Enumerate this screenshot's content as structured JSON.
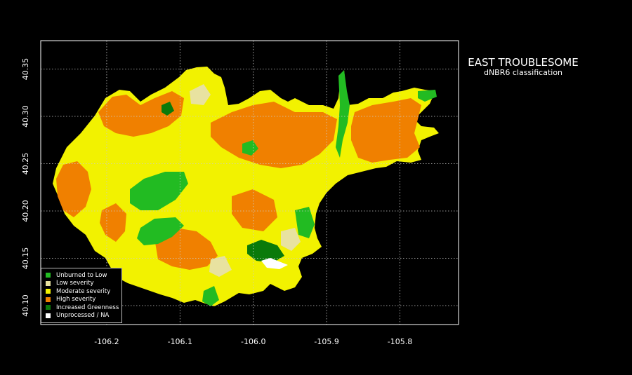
{
  "title": "EAST TROUBLESOME",
  "subtitle": "dNBR6 classification",
  "axes": {
    "x_ticks": [
      "-106.2",
      "-106.1",
      "-106.0",
      "-105.9",
      "-105.8"
    ],
    "x_tick_values": [
      -106.2,
      -106.1,
      -106.0,
      -105.9,
      -105.8
    ],
    "y_ticks": [
      "40.10",
      "40.15",
      "40.20",
      "40.25",
      "40.30",
      "40.35"
    ],
    "y_tick_values": [
      40.1,
      40.15,
      40.2,
      40.25,
      40.3,
      40.35
    ],
    "xlim": [
      -106.29,
      -105.72
    ],
    "ylim": [
      40.08,
      40.38
    ],
    "grid": true
  },
  "legend": {
    "placement": "bottom-left",
    "items": [
      {
        "label": "Unburned to Low",
        "color": "#22bb22"
      },
      {
        "label": "Low severity",
        "color": "#e8e2a0"
      },
      {
        "label": "Moderate severity",
        "color": "#f2f200"
      },
      {
        "label": "High severity",
        "color": "#f08000"
      },
      {
        "label": "Increased Greenness",
        "color": "#0a7a0a"
      },
      {
        "label": "Unprocessed / NA",
        "color": "#ffffff"
      }
    ]
  },
  "map": {
    "background": "#000000",
    "perimeter_fill": "#f2f200"
  }
}
